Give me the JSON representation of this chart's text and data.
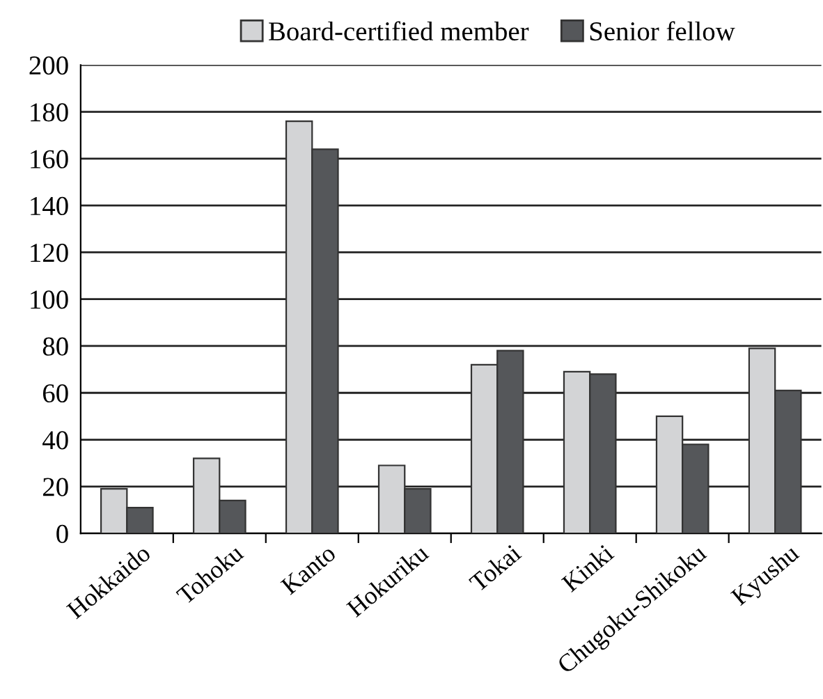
{
  "chart_data": {
    "type": "bar",
    "categories": [
      "Hokkaido",
      "Tohoku",
      "Kanto",
      "Hokuriku",
      "Tokai",
      "Kinki",
      "Chugoku-Shikoku",
      "Kyushu"
    ],
    "series": [
      {
        "name": "Board-certified member",
        "color": "#d3d4d6",
        "values": [
          19,
          32,
          176,
          29,
          72,
          69,
          50,
          79
        ]
      },
      {
        "name": "Senior fellow",
        "color": "#55575a",
        "values": [
          11,
          14,
          164,
          19,
          78,
          68,
          38,
          61
        ]
      }
    ],
    "ylim": [
      0,
      200
    ],
    "yticks": [
      0,
      20,
      40,
      60,
      80,
      100,
      120,
      140,
      160,
      180,
      200
    ],
    "grid": "y",
    "legend": "top"
  }
}
